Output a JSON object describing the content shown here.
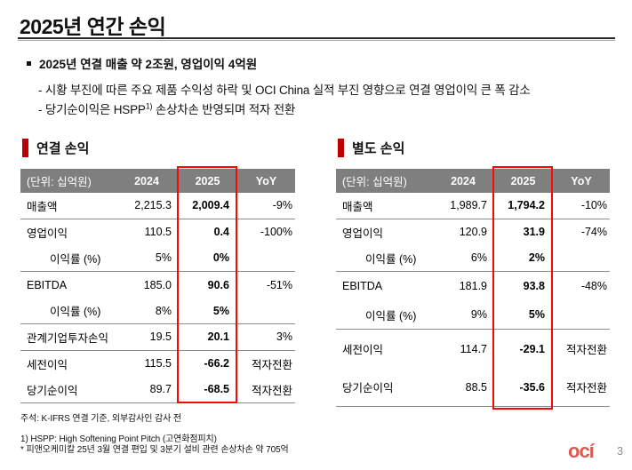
{
  "colors": {
    "section_accent_bar": "#c00000",
    "highlight_box_red": "#fe0505",
    "table_header_bg": "#7f7f7f",
    "divider_gray": "#8c8c8c",
    "logo_red": "#e0574f",
    "page_number_gray": "#8c8c8c"
  },
  "header": {
    "title": "2025년 연간 손익"
  },
  "summary": {
    "headline": "2025년 연결 매출 약 2조원, 영업이익 4억원",
    "point1": "- 시황 부진에 따른 주요 제품 수익성 하락 및 OCI China 실적 부진 영향으로 연결 영업이익 큰 폭 감소",
    "point2_pre": "- 당기순이익은 HSPP",
    "point2_sup": "1)",
    "point2_post": " 손상차손 반영되며 적자 전환"
  },
  "tables": [
    {
      "section_title": "연결 손익",
      "unit_label": "(단위: 십억원)",
      "columns": [
        "2024",
        "2025",
        "YoY"
      ],
      "rows": [
        {
          "label": "매출액",
          "v2024": "2,215.3",
          "v2025": "2,009.4",
          "yoy": "-9%",
          "divider": true
        },
        {
          "label": "영업이익",
          "v2024": "110.5",
          "v2025": "0.4",
          "yoy": "-100%"
        },
        {
          "label": "이익률 (%)",
          "indent": true,
          "v2024": "5%",
          "v2025": "0%",
          "yoy": "",
          "divider": true
        },
        {
          "label": "EBITDA",
          "v2024": "185.0",
          "v2025": "90.6",
          "yoy": "-51%"
        },
        {
          "label": "이익률 (%)",
          "indent": true,
          "v2024": "8%",
          "v2025": "5%",
          "yoy": "",
          "divider": true
        },
        {
          "label": "관계기업투자손익",
          "v2024": "19.5",
          "v2025": "20.1",
          "yoy": "3%",
          "divider": true
        },
        {
          "label": "세전이익",
          "v2024": "115.5",
          "v2025": "-66.2",
          "yoy": "적자전환"
        },
        {
          "label": "당기순이익",
          "v2024": "89.7",
          "v2025": "-68.5",
          "yoy": "적자전환",
          "divider": true
        }
      ]
    },
    {
      "section_title": "별도 손익",
      "unit_label": "(단위: 십억원)",
      "columns": [
        "2024",
        "2025",
        "YoY"
      ],
      "rows": [
        {
          "label": "매출액",
          "v2024": "1,989.7",
          "v2025": "1,794.2",
          "yoy": "-10%",
          "divider": true
        },
        {
          "label": "영업이익",
          "v2024": "120.9",
          "v2025": "31.9",
          "yoy": "-74%"
        },
        {
          "label": "이익률 (%)",
          "indent": true,
          "v2024": "6%",
          "v2025": "2%",
          "yoy": "",
          "divider": true
        },
        {
          "label": "EBITDA",
          "size": "mid",
          "v2024": "181.9",
          "v2025": "93.8",
          "yoy": "-48%"
        },
        {
          "label": "이익률 (%)",
          "size": "mid",
          "indent": true,
          "v2024": "9%",
          "v2025": "5%",
          "yoy": "",
          "divider": true
        },
        {
          "label": "세전이익",
          "size": "tall",
          "v2024": "114.7",
          "v2025": "-29.1",
          "yoy": "적자전환"
        },
        {
          "label": "당기순이익",
          "size": "tall",
          "v2024": "88.5",
          "v2025": "-35.6",
          "yoy": "적자전환",
          "divider": true
        }
      ]
    }
  ],
  "footnotes": [
    "주석: K-IFRS 연결 기준, 외부감사인 감사 전",
    "1) HSPP: High Softening Point Pitch (고연화점피치)",
    "* 피앤오케미칼 25년 3월 연결 편입 및 3분기 설비 관련 손상차손 약 705억"
  ],
  "footer": {
    "logo_text": "ocí",
    "page_number": "3"
  }
}
